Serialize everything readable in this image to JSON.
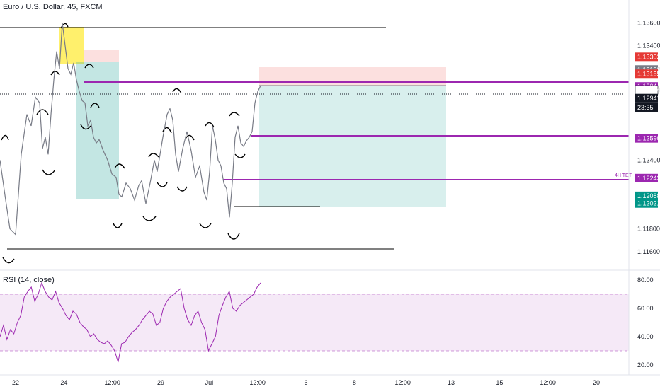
{
  "header": {
    "symbol": "Euro / U.S. Dollar, 45, FXCM"
  },
  "rsi_panel": {
    "label": "RSI (14, close)"
  },
  "annotations": {
    "tet_label": "4H TET"
  },
  "chart_data": [
    {
      "type": "line",
      "title": "Euro / U.S. Dollar, 45, FXCM",
      "series": [
        {
          "name": "",
          "x": [
            0,
            8,
            14,
            22,
            30,
            38,
            44,
            50,
            56,
            60,
            64,
            68,
            72,
            76,
            80,
            84,
            88,
            92,
            96,
            100,
            104,
            108,
            112,
            116,
            120,
            124,
            128,
            132,
            136,
            140,
            146,
            152,
            158,
            164,
            168,
            172,
            178,
            184,
            190,
            196,
            200,
            206,
            212,
            218,
            222,
            226,
            230,
            236,
            240,
            244,
            248,
            252,
            258,
            264,
            270,
            276,
            282,
            288,
            292,
            296,
            300,
            304,
            308,
            312,
            316,
            320,
            324,
            328,
            332,
            336,
            340,
            344,
            348,
            352,
            356,
            360,
            364,
            368
          ],
          "values": [
            1.124,
            1.1205,
            1.118,
            1.1175,
            1.1245,
            1.128,
            1.127,
            1.1295,
            1.129,
            1.125,
            1.126,
            1.1245,
            1.128,
            1.131,
            1.1335,
            1.132,
            1.136,
            1.134,
            1.132,
            1.1315,
            1.1325,
            1.131,
            1.13,
            1.1292,
            1.129,
            1.127,
            1.1275,
            1.126,
            1.1255,
            1.1258,
            1.1248,
            1.124,
            1.1228,
            1.1225,
            1.121,
            1.1208,
            1.122,
            1.1215,
            1.1205,
            1.1218,
            1.1222,
            1.1202,
            1.122,
            1.124,
            1.123,
            1.1245,
            1.126,
            1.128,
            1.1285,
            1.1275,
            1.1245,
            1.123,
            1.125,
            1.1265,
            1.1248,
            1.1225,
            1.1235,
            1.1212,
            1.1205,
            1.123,
            1.127,
            1.1258,
            1.124,
            1.1235,
            1.122,
            1.1215,
            1.119,
            1.122,
            1.126,
            1.127,
            1.1255,
            1.1252,
            1.1257,
            1.126,
            1.1265,
            1.129,
            1.13,
            1.1305
          ]
        }
      ],
      "y_ticks": [
        "1.13600",
        "1.13400",
        "1.13192",
        "1.13014",
        "1.12400",
        "1.11800",
        "1.11600"
      ],
      "price_tags": [
        {
          "label": "1.13303",
          "value": 1.13303,
          "color": "#e53935"
        },
        {
          "label": "1.13192",
          "value": 1.13192,
          "color": "#787b86"
        },
        {
          "label": "1.13155",
          "value": 1.13155,
          "color": "#e53935"
        },
        {
          "label": "1.13044",
          "value": 1.13044,
          "color": "#9c27b0"
        },
        {
          "label": "1.13014",
          "value": 1.13014,
          "color": "#ffffff",
          "text_color": "#131722"
        },
        {
          "label": "1.12941",
          "value": 1.12941,
          "color": "#131722"
        },
        {
          "label": "23:35",
          "value": 1.1286,
          "color": "#131722"
        },
        {
          "label": "1.12590",
          "value": 1.1259,
          "color": "#9c27b0"
        },
        {
          "label": "1.12243",
          "value": 1.12243,
          "color": "#9c27b0"
        },
        {
          "label": "1.12088",
          "value": 1.12088,
          "color": "#009688"
        },
        {
          "label": "1.12021",
          "value": 1.12021,
          "color": "#009688"
        }
      ],
      "x_ticks": [
        "22",
        "24",
        "12:00",
        "29",
        "Jul",
        "12:00",
        "6",
        "8",
        "12:00",
        "13",
        "15",
        "12:00",
        "20"
      ],
      "ylim": [
        1.115,
        1.1375
      ],
      "colors": {
        "price": "#787b86",
        "level": "#9c27b0",
        "profit": "#26a69a",
        "loss": "#ef5350",
        "highlight": "#ffeb3b"
      }
    },
    {
      "type": "line",
      "title": "RSI (14, close)",
      "series": [
        {
          "name": "",
          "values": [
            40,
            48,
            38,
            45,
            42,
            50,
            55,
            68,
            72,
            75,
            65,
            70,
            78,
            72,
            68,
            66,
            72,
            64,
            60,
            55,
            52,
            58,
            56,
            50,
            47,
            45,
            40,
            42,
            38,
            36,
            35,
            37,
            34,
            30,
            22,
            35,
            36,
            40,
            43,
            45,
            48,
            52,
            55,
            58,
            56,
            48,
            50,
            60,
            65,
            68,
            70,
            72,
            74,
            60,
            52,
            48,
            55,
            58,
            50,
            45,
            30,
            35,
            40,
            55,
            62,
            68,
            72,
            60,
            58,
            62,
            64,
            66,
            68,
            70,
            75,
            78
          ]
        }
      ],
      "y_ticks": [
        "80.00",
        "60.00",
        "40.00",
        "20.00"
      ],
      "overbought": 70,
      "oversold": 30,
      "ylim": [
        15,
        85
      ]
    }
  ]
}
